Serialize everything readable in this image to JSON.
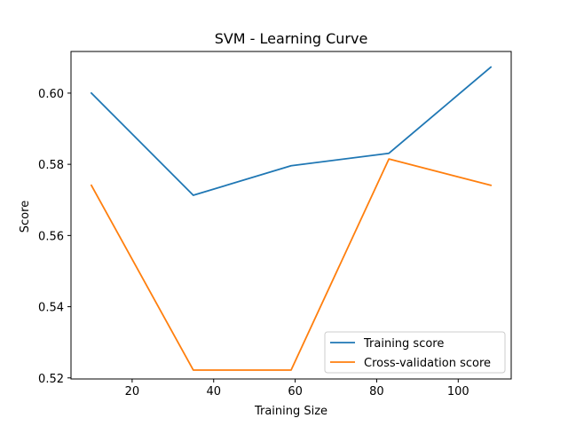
{
  "chart_data": {
    "type": "line",
    "title": "SVM - Learning Curve",
    "xlabel": "Training Size",
    "ylabel": "Score",
    "xlim": [
      5,
      113
    ],
    "ylim": [
      0.5197,
      0.6117
    ],
    "x_ticks": [
      20,
      40,
      60,
      80,
      100
    ],
    "y_ticks": [
      0.52,
      0.54,
      0.56,
      0.58,
      0.6
    ],
    "x_tick_labels": [
      "20",
      "40",
      "60",
      "80",
      "100"
    ],
    "y_tick_labels": [
      "0.52",
      "0.54",
      "0.56",
      "0.58",
      "0.60"
    ],
    "grid": false,
    "legend_position": "lower-right",
    "x": [
      10,
      35,
      59,
      83,
      108
    ],
    "series": [
      {
        "name": "Training score",
        "color": "#1f77b4",
        "values": [
          0.6,
          0.5713,
          0.5796,
          0.5831,
          0.6073
        ]
      },
      {
        "name": "Cross-validation score",
        "color": "#ff7f0e",
        "values": [
          0.5741,
          0.5222,
          0.5222,
          0.5815,
          0.5741
        ]
      }
    ]
  }
}
